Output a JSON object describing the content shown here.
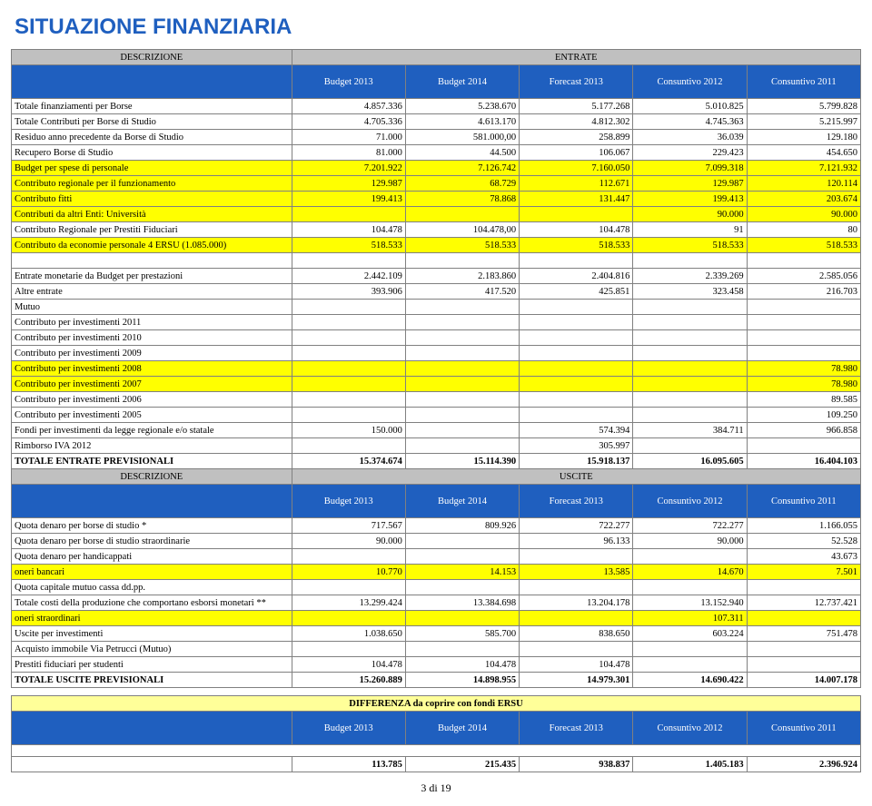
{
  "title": "SITUAZIONE FINANZIARIA",
  "headers": {
    "descrizione": "DESCRIZIONE",
    "entrate": "ENTRATE",
    "uscite": "USCITE",
    "col1": "Budget 2013",
    "col2": "Budget 2014",
    "col3": "Forecast  2013",
    "col4": "Consuntivo 2012",
    "col5": "Consuntivo 2011"
  },
  "entrate_rows": [
    {
      "d": "Totale finanziamenti per Borse",
      "v": [
        "4.857.336",
        "5.238.670",
        "5.177.268",
        "5.010.825",
        "5.799.828"
      ],
      "class": ""
    },
    {
      "d": "Totale Contributi per Borse di Studio",
      "v": [
        "4.705.336",
        "4.613.170",
        "4.812.302",
        "4.745.363",
        "5.215.997"
      ],
      "class": ""
    },
    {
      "d": "Residuo anno precedente da Borse di Studio",
      "v": [
        "71.000",
        "581.000,00",
        "258.899",
        "36.039",
        "129.180"
      ],
      "class": ""
    },
    {
      "d": "Recupero Borse di Studio",
      "v": [
        "81.000",
        "44.500",
        "106.067",
        "229.423",
        "454.650"
      ],
      "class": ""
    },
    {
      "d": "Budget per spese di personale",
      "v": [
        "7.201.922",
        "7.126.742",
        "7.160.050",
        "7.099.318",
        "7.121.932"
      ],
      "class": "row-yellow"
    },
    {
      "d": "Contributo regionale per il funzionamento",
      "v": [
        "129.987",
        "68.729",
        "112.671",
        "129.987",
        "120.114"
      ],
      "class": "row-yellow"
    },
    {
      "d": "Contributo fitti",
      "v": [
        "199.413",
        "78.868",
        "131.447",
        "199.413",
        "203.674"
      ],
      "class": "row-yellow"
    },
    {
      "d": "Contributi da altri Enti: Università",
      "v": [
        "",
        "",
        "",
        "90.000",
        "90.000"
      ],
      "class": "row-yellow"
    },
    {
      "d": "Contributo Regionale per Prestiti Fiduciari",
      "v": [
        "104.478",
        "104.478,00",
        "104.478",
        "91",
        "80"
      ],
      "class": ""
    },
    {
      "d": "Contributo da economie personale 4 ERSU (1.085.000)",
      "v": [
        "518.533",
        "518.533",
        "518.533",
        "518.533",
        "518.533"
      ],
      "class": "row-yellow"
    },
    {
      "d": "",
      "v": [
        "",
        "",
        "",
        "",
        ""
      ],
      "class": ""
    },
    {
      "d": "Entrate monetarie da Budget per prestazioni",
      "v": [
        "2.442.109",
        "2.183.860",
        "2.404.816",
        "2.339.269",
        "2.585.056"
      ],
      "class": ""
    },
    {
      "d": "Altre entrate",
      "v": [
        "393.906",
        "417.520",
        "425.851",
        "323.458",
        "216.703"
      ],
      "class": ""
    },
    {
      "d": "Mutuo",
      "v": [
        "",
        "",
        "",
        "",
        ""
      ],
      "class": ""
    },
    {
      "d": "Contributo per investimenti 2011",
      "v": [
        "",
        "",
        "",
        "",
        ""
      ],
      "class": ""
    },
    {
      "d": "Contributo per investimenti 2010",
      "v": [
        "",
        "",
        "",
        "",
        ""
      ],
      "class": ""
    },
    {
      "d": "Contributo per investimenti 2009",
      "v": [
        "",
        "",
        "",
        "",
        ""
      ],
      "class": ""
    },
    {
      "d": "Contributo per investimenti 2008",
      "v": [
        "",
        "",
        "",
        "",
        "78.980"
      ],
      "class": "row-yellow"
    },
    {
      "d": "Contributo per investimenti 2007",
      "v": [
        "",
        "",
        "",
        "",
        "78.980"
      ],
      "class": "row-yellow"
    },
    {
      "d": "Contributo per investimenti 2006",
      "v": [
        "",
        "",
        "",
        "",
        "89.585"
      ],
      "class": ""
    },
    {
      "d": "Contributo per investimenti 2005",
      "v": [
        "",
        "",
        "",
        "",
        "109.250"
      ],
      "class": ""
    },
    {
      "d": "Fondi per investimenti da legge regionale e/o statale",
      "v": [
        "150.000",
        "",
        "574.394",
        "384.711",
        "966.858"
      ],
      "class": ""
    },
    {
      "d": "Rimborso IVA 2012",
      "v": [
        "",
        "",
        "305.997",
        "",
        ""
      ],
      "class": ""
    },
    {
      "d": "TOTALE ENTRATE PREVISIONALI",
      "v": [
        "15.374.674",
        "15.114.390",
        "15.918.137",
        "16.095.605",
        "16.404.103"
      ],
      "class": "row-bold"
    }
  ],
  "uscite_rows": [
    {
      "d": "Quota denaro per borse di studio                                             *",
      "v": [
        "717.567",
        "809.926",
        "722.277",
        "722.277",
        "1.166.055"
      ],
      "class": ""
    },
    {
      "d": "Quota denaro per borse di studio straordinarie",
      "v": [
        "90.000",
        "",
        "96.133",
        "90.000",
        "52.528"
      ],
      "class": ""
    },
    {
      "d": "Quota denaro per handicappati",
      "v": [
        "",
        "",
        "",
        "",
        "43.673"
      ],
      "class": ""
    },
    {
      "d": "oneri bancari",
      "v": [
        "10.770",
        "14.153",
        "13.585",
        "14.670",
        "7.501"
      ],
      "class": "row-yellow"
    },
    {
      "d": "Quota capitale mutuo cassa dd.pp.",
      "v": [
        "",
        "",
        "",
        "",
        ""
      ],
      "class": ""
    },
    {
      "d": "Totale costi della produzione che comportano esborsi monetari **",
      "v": [
        "13.299.424",
        "13.384.698",
        "13.204.178",
        "13.152.940",
        "12.737.421"
      ],
      "class": ""
    },
    {
      "d": "oneri straordinari",
      "v": [
        "",
        "",
        "",
        "107.311",
        ""
      ],
      "class": "row-yellow"
    },
    {
      "d": "Uscite per investimenti",
      "v": [
        "1.038.650",
        "585.700",
        "838.650",
        "603.224",
        "751.478"
      ],
      "class": ""
    },
    {
      "d": "Acquisto immobile Via Petrucci  (Mutuo)",
      "v": [
        "",
        "",
        "",
        "",
        ""
      ],
      "class": ""
    },
    {
      "d": "Prestiti fiduciari per studenti",
      "v": [
        "104.478",
        "104.478",
        "104.478",
        "",
        ""
      ],
      "class": ""
    },
    {
      "d": "TOTALE USCITE PREVISIONALI",
      "v": [
        "15.260.889",
        "14.898.955",
        "14.979.301",
        "14.690.422",
        "14.007.178"
      ],
      "class": "row-bold"
    }
  ],
  "diff": {
    "label": "DIFFERENZA da coprire con fondi ERSU",
    "values": [
      "113.785",
      "215.435",
      "938.837",
      "1.405.183",
      "2.396.924"
    ]
  },
  "footer": "3 di 19"
}
